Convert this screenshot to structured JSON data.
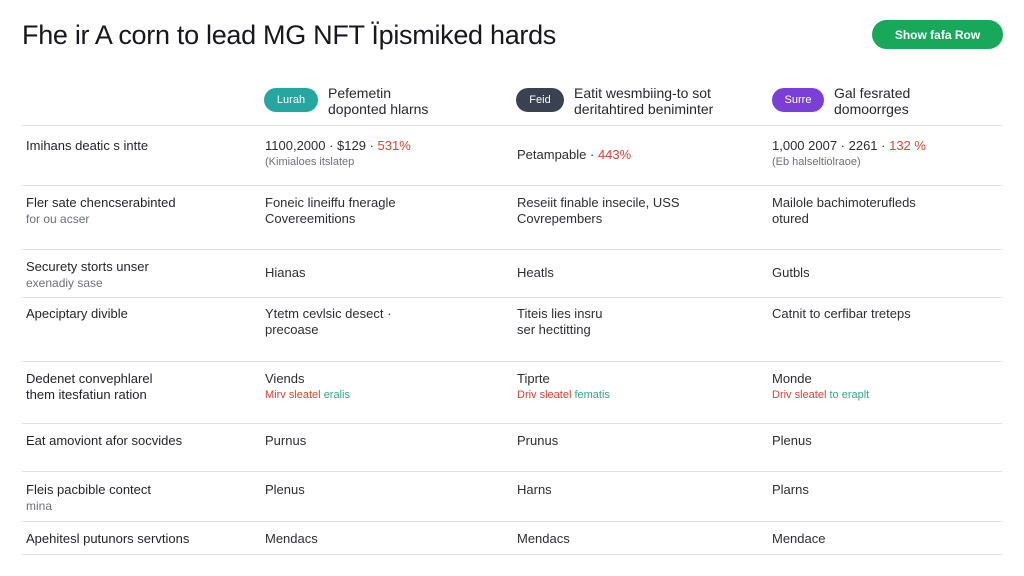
{
  "header": {
    "title": "Fhe ir A corn to lead MG NFT Ïpismiked hards",
    "cta_label": "Show fafa Row"
  },
  "columns": [
    {
      "badge": "Lurah",
      "badge_color": "#24a7a0",
      "label": [
        "Pefemetin",
        "doponted hlarns"
      ]
    },
    {
      "badge": "Feid",
      "badge_color": "#3a4150",
      "label": [
        "Eatit wesmbiing-to sot",
        "deritahtired beniminter"
      ]
    },
    {
      "badge": "Surre",
      "badge_color": "#7b3fd9",
      "label": [
        "Gal fesrated",
        "domoorrges"
      ]
    }
  ],
  "rows": [
    {
      "label": [
        "Imihans deatic s intte"
      ],
      "cells": [
        {
          "l1a": "1100,2000 · $129 · ",
          "l1b": "531%",
          "l2": "(Kimialoes itslatep"
        },
        {
          "l1a": "Petampable · ",
          "l1b": "443%",
          "l2": ""
        },
        {
          "l1a": "1,000 2007 · 2261 · ",
          "l1b": "132 %",
          "l2": "(Eb halseltiolraoe)"
        }
      ]
    },
    {
      "label": [
        "Fler sate chencserabinted",
        "for ou acser"
      ],
      "cells": [
        [
          "Foneic lineiffu fneragle",
          "Covereemitions"
        ],
        [
          "Reseiit finable insecile, USS",
          "Covrepembers"
        ],
        [
          "Mailole bachimoterufleds",
          "otured"
        ]
      ]
    },
    {
      "label": [
        "Securety storts unser",
        "exenadiy sase"
      ],
      "cells": [
        [
          "Hianas"
        ],
        [
          "Heatls"
        ],
        [
          "Gutbls"
        ]
      ]
    },
    {
      "label": [
        "Apeciptary divible"
      ],
      "cells": [
        [
          "Ytetm cevlsic desect ·",
          "precoase"
        ],
        [
          "Titeis lies insru",
          "ser hectitting"
        ],
        [
          "Catnit to cerfibar treteps"
        ]
      ]
    },
    {
      "label": [
        "Dedenet convephlarel",
        "them itesfatiun ration"
      ],
      "cells": [
        {
          "l1": "Viends",
          "l2a": "Mirv sleatel ",
          "l2b": "eralis"
        },
        {
          "l1": "Tiprte",
          "l2a": "Driv sleatel ",
          "l2b": "fematis"
        },
        {
          "l1": "Monde",
          "l2a": "Driv sleatel ",
          "l2b": "to eraplt"
        }
      ]
    },
    {
      "label": [
        "Eat amoviont afor socvides"
      ],
      "cells": [
        [
          "Purnus"
        ],
        [
          "Prunus"
        ],
        [
          "Plenus"
        ]
      ]
    },
    {
      "label": [
        "Fleis pacbible contect",
        "mina"
      ],
      "cells": [
        [
          "Plenus"
        ],
        [
          "Harns"
        ],
        [
          "Plarns"
        ]
      ]
    },
    {
      "label": [
        "Apehitesl putunors servtions"
      ],
      "cells": [
        [
          "Mendacs"
        ],
        [
          "Mendacs"
        ],
        [
          "Mendace"
        ]
      ]
    }
  ]
}
